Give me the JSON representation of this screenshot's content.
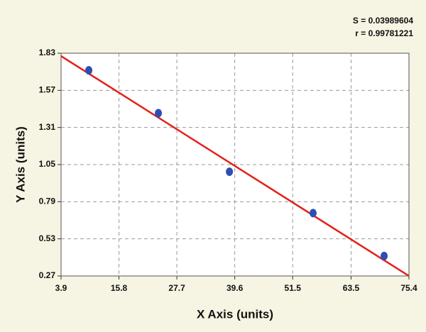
{
  "chart_data": {
    "type": "scatter",
    "xlabel": "X Axis (units)",
    "ylabel": "Y Axis (units)",
    "annotations": [
      "S = 0.03989604",
      "r = 0.99781221"
    ],
    "xlim": [
      3.9,
      75.4
    ],
    "xticks": [
      3.9,
      15.8,
      27.7,
      39.6,
      51.5,
      63.5,
      75.4
    ],
    "ylim": [
      0.27,
      1.83
    ],
    "yticks": [
      0.27,
      0.53,
      0.79,
      1.05,
      1.31,
      1.57,
      1.83
    ],
    "grid": true,
    "series": [
      {
        "color": "#2b4fb3",
        "x": [
          9.6,
          23.9,
          38.5,
          55.7,
          70.3
        ],
        "values": [
          1.71,
          1.41,
          1.0,
          0.71,
          0.41
        ]
      }
    ],
    "fit_line": {
      "color": "#e3201b",
      "x": [
        3.9,
        75.4
      ],
      "y": [
        1.81,
        0.27
      ]
    }
  }
}
